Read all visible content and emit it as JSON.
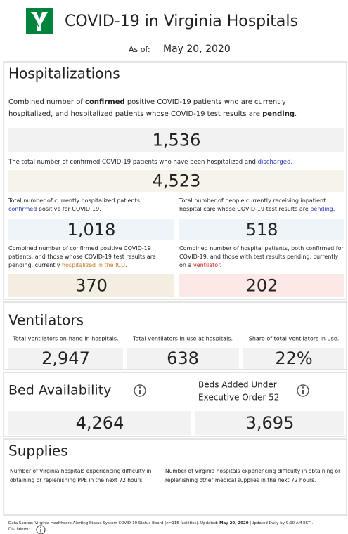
{
  "header": {
    "title": "COVID-19 in Virginia Hospitals",
    "as_of_label": "As of:",
    "as_of_date": "May 20, 2020"
  },
  "hospitalizations": {
    "title": "Hospitalizations",
    "description": [
      [
        "Combined number of ",
        "confirmed",
        " positive COVID-19 patients who are currently"
      ],
      [
        "hospitalized, and hospitalized patients whose COVID-19 test results are ",
        "pending",
        "."
      ]
    ],
    "total": "1,536",
    "discharged_text": [
      [
        "The total number of confirmed COVID-19 patients who have been hospitalized and ",
        "discharged",
        "."
      ]
    ],
    "discharged": "4,523",
    "confirmed_text": [
      [
        "Total number of currently hospitalized patients"
      ],
      [
        "confirmed",
        " positive for COVID-19."
      ]
    ],
    "confirmed": "1,018",
    "pending_text": [
      [
        "Total number of people currently receiving inpatient"
      ],
      [
        "hospital care whose COVID-19 test results are ",
        "pending",
        "."
      ]
    ],
    "pending": "518",
    "icu_text": [
      [
        "Combined number of confirmed positive COVID-19"
      ],
      [
        "patients, and those whose COVID-19 test results are"
      ],
      [
        "pending, currently ",
        "hospitalized in the ICU",
        "."
      ]
    ],
    "icu": "370",
    "ventilator_text": [
      [
        "Combined number of hospital patients, both confirmed for"
      ],
      [
        "COVID-19, and those with test results pending, currently"
      ],
      [
        "on a ",
        "ventilator",
        "."
      ]
    ],
    "ventilator": "202"
  },
  "ventilators": {
    "title": "Ventilators",
    "items": [
      {
        "label": "Total ventilators on-hand in hospitals.",
        "value": "2,947"
      },
      {
        "label": "Total ventilators in use at hospitals.",
        "value": "638"
      },
      {
        "label": "Share of total ventilators in use.",
        "value": "22%"
      }
    ]
  },
  "beds": {
    "title": "Bed Availability",
    "available": "4,264",
    "added_title": [
      "Beds Added Under",
      "Executive Order 52"
    ],
    "added": "3,695"
  },
  "supplies": {
    "title": "Supplies",
    "ppe_text": [
      [
        "Number of Virginia hospitals experiencing difficulty in"
      ],
      [
        "obtaining or replenishing PPE in the next 72 hours."
      ]
    ],
    "other_text": [
      [
        "Number of Virginia hospitals experiencing difficulty in obtaining or"
      ],
      [
        "replenishing other medical supplies in the next 72 hours."
      ]
    ]
  },
  "footer": {
    "source": [
      [
        "Data Source: Virginia Healthcare Alerting Status System COVID-19 Status Board (n=115 facilities). Updated: ",
        "May 20, 2020",
        " (Updated Daily by 9:00 AM EST)."
      ]
    ],
    "disclaimer": "Disclaimer:"
  }
}
